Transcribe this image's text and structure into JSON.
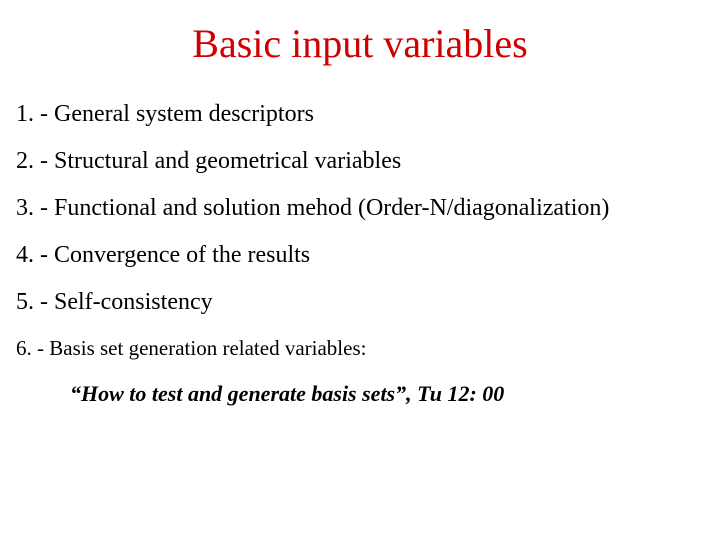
{
  "title": {
    "text": "Basic input variables",
    "color": "#d00000",
    "fontsize": 40
  },
  "items": [
    {
      "text": "1. - General system descriptors",
      "fontsize": 24
    },
    {
      "text": "2. - Structural and geometrical variables",
      "fontsize": 24
    },
    {
      "text": "3. - Functional and solution mehod (Order-N/diagonalization)",
      "fontsize": 24
    },
    {
      "text": "4. - Convergence of the results",
      "fontsize": 24
    },
    {
      "text": "5. - Self-consistency",
      "fontsize": 24
    },
    {
      "text": "6. - Basis set generation related variables:",
      "fontsize": 21
    }
  ],
  "subnote": {
    "text": "“How to test and generate basis sets”, Tu 12: 00",
    "fontsize": 22
  },
  "colors": {
    "background": "#ffffff",
    "body_text": "#000000"
  }
}
